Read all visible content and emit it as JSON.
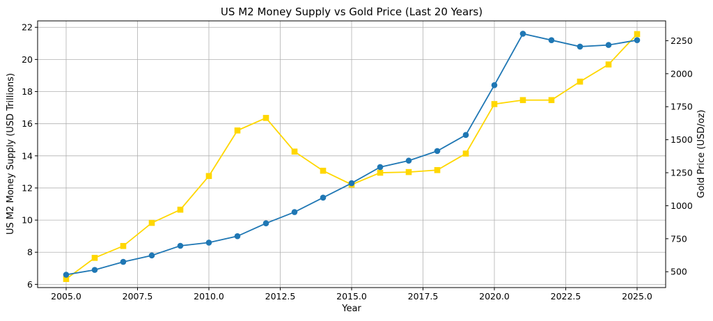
{
  "chart_data": {
    "type": "line",
    "title": "US M2 Money Supply vs Gold Price (Last 20 Years)",
    "xlabel": "Year",
    "ylabel_left": "US M2 Money Supply (USD Trillions)",
    "ylabel_right": "Gold Price (USD/oz)",
    "xlim": [
      2004.0,
      2026.0
    ],
    "ylim_left": [
      5.8,
      22.4
    ],
    "ylim_right": [
      380,
      2400
    ],
    "grid": true,
    "x_ticks": [
      2005.0,
      2007.5,
      2010.0,
      2012.5,
      2015.0,
      2017.5,
      2020.0,
      2022.5,
      2025.0
    ],
    "x_tick_labels": [
      "2005.0",
      "2007.5",
      "2010.0",
      "2012.5",
      "2015.0",
      "2017.5",
      "2020.0",
      "2022.5",
      "2025.0"
    ],
    "y_left_ticks": [
      6,
      8,
      10,
      12,
      14,
      16,
      18,
      20,
      22
    ],
    "y_left_tick_labels": [
      "6",
      "8",
      "10",
      "12",
      "14",
      "16",
      "18",
      "20",
      "22"
    ],
    "y_right_ticks": [
      500,
      750,
      1000,
      1250,
      1500,
      1750,
      2000,
      2250
    ],
    "y_right_tick_labels": [
      "500",
      "750",
      "1000",
      "1250",
      "1500",
      "1750",
      "2000",
      "2250"
    ],
    "x": [
      2005,
      2006,
      2007,
      2008,
      2009,
      2010,
      2011,
      2012,
      2013,
      2014,
      2015,
      2016,
      2017,
      2018,
      2019,
      2020,
      2021,
      2022,
      2023,
      2024,
      2025
    ],
    "series": [
      {
        "name": "US M2 Money Supply",
        "axis": "left",
        "color": "#1f77b4",
        "marker": "circle",
        "values": [
          6.6,
          6.9,
          7.4,
          7.8,
          8.4,
          8.6,
          9.0,
          9.8,
          10.5,
          11.4,
          12.3,
          13.3,
          13.7,
          14.3,
          15.3,
          18.4,
          21.6,
          21.2,
          20.8,
          20.9,
          21.2
        ]
      },
      {
        "name": "Gold Price",
        "axis": "right",
        "color": "#ffd700",
        "marker": "square",
        "values": [
          445,
          605,
          695,
          870,
          970,
          1225,
          1570,
          1665,
          1410,
          1265,
          1160,
          1250,
          1255,
          1270,
          1395,
          1770,
          1800,
          1800,
          1940,
          2070,
          2300
        ]
      }
    ]
  }
}
